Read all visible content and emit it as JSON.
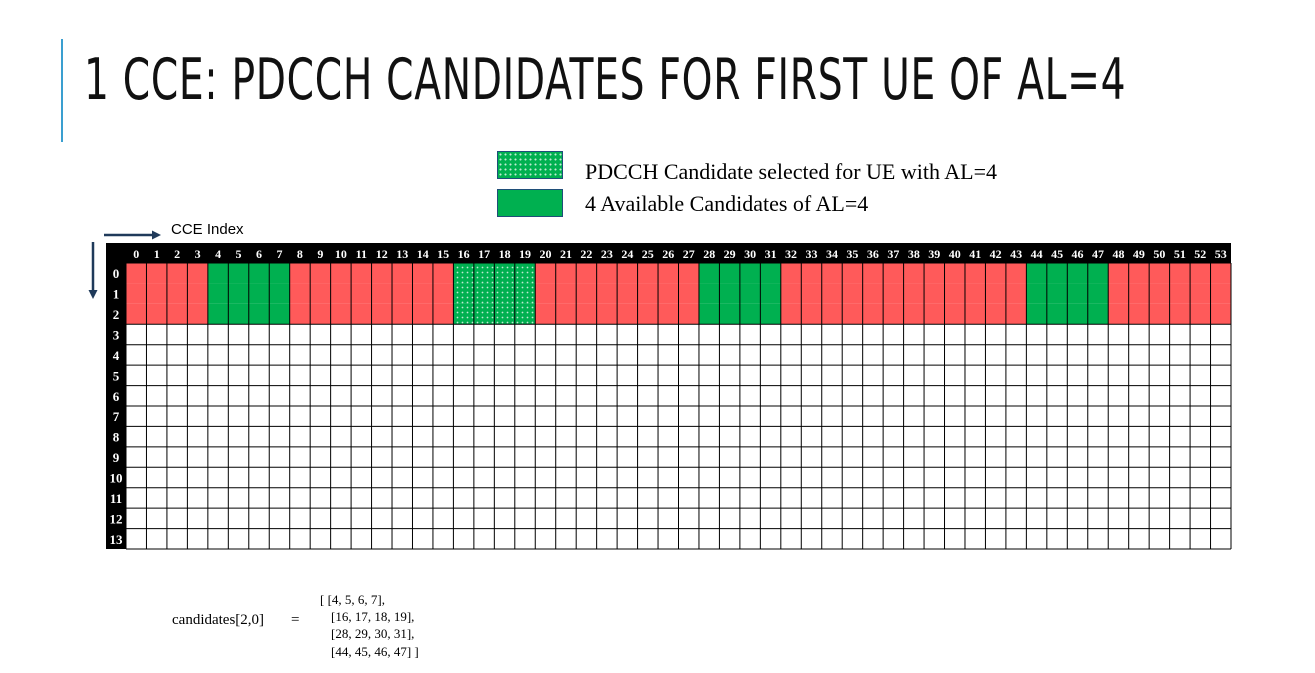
{
  "slide": {
    "title": "1 CCE: PDCCH CANDIDATES FOR FIRST UE OF AL=4",
    "accent_color": "#3a9fd0"
  },
  "legend": [
    {
      "label": "PDCCH Candidate selected for UE with AL=4",
      "pattern": "green-dotted",
      "color": "#00b050"
    },
    {
      "label": "4 Available Candidates of AL=4",
      "pattern": "green-solid",
      "color": "#00b050"
    }
  ],
  "grid": {
    "x_axis_label": "CCE Index",
    "columns": [
      "0",
      "1",
      "2",
      "3",
      "4",
      "5",
      "6",
      "7",
      "8",
      "9",
      "10",
      "11",
      "12",
      "13",
      "14",
      "15",
      "16",
      "17",
      "18",
      "19",
      "20",
      "21",
      "22",
      "23",
      "24",
      "25",
      "26",
      "27",
      "28",
      "29",
      "30",
      "31",
      "32",
      "33",
      "34",
      "35",
      "36",
      "37",
      "38",
      "39",
      "40",
      "41",
      "42",
      "43",
      "44",
      "45",
      "46",
      "47",
      "48",
      "49",
      "50",
      "51",
      "52",
      "53"
    ],
    "rows": [
      "0",
      "1",
      "2",
      "3",
      "4",
      "5",
      "6",
      "7",
      "8",
      "9",
      "10",
      "11",
      "12",
      "13"
    ],
    "occupied_rows": [
      0,
      1,
      2
    ],
    "available_candidate_cces": [
      [
        4,
        5,
        6,
        7
      ],
      [
        16,
        17,
        18,
        19
      ],
      [
        28,
        29,
        30,
        31
      ],
      [
        44,
        45,
        46,
        47
      ]
    ],
    "selected_candidate_cces": [
      16,
      17,
      18,
      19
    ],
    "colors": {
      "occupied": "#ff5a5a",
      "candidate": "#00b050",
      "empty": "#ffffff",
      "header": "#000000",
      "header_text": "#ffffff",
      "arrow": "#1f3a5a"
    }
  },
  "formula": {
    "lhs": "candidates[2,0]",
    "equals": "=",
    "lines": [
      "[  [4, 5, 6, 7],",
      "[16, 17, 18, 19],",
      "[28, 29, 30, 31],",
      "[44, 45, 46, 47] ]"
    ]
  }
}
